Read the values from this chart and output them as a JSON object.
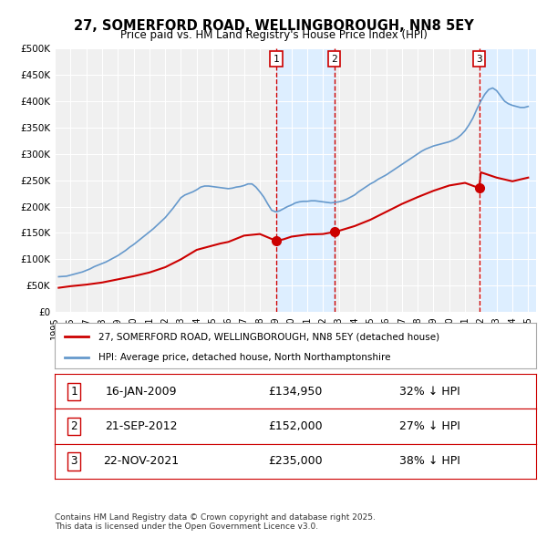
{
  "title_line1": "27, SOMERFORD ROAD, WELLINGBOROUGH, NN8 5EY",
  "title_line2": "Price paid vs. HM Land Registry's House Price Index (HPI)",
  "background_color": "#ffffff",
  "plot_bg_color": "#f0f0f0",
  "ylabel": "",
  "ylim": [
    0,
    500000
  ],
  "yticks": [
    0,
    50000,
    100000,
    150000,
    200000,
    250000,
    300000,
    350000,
    400000,
    450000,
    500000
  ],
  "ytick_labels": [
    "£0",
    "£50K",
    "£100K",
    "£150K",
    "£200K",
    "£250K",
    "£300K",
    "£350K",
    "£400K",
    "£450K",
    "£500K"
  ],
  "xlim_start": 1995.0,
  "xlim_end": 2025.5,
  "sale_dates": [
    2009.04,
    2012.72,
    2021.9
  ],
  "sale_prices": [
    134950,
    152000,
    235000
  ],
  "sale_labels": [
    "1",
    "2",
    "3"
  ],
  "sale_date_strs": [
    "16-JAN-2009",
    "21-SEP-2012",
    "22-NOV-2021"
  ],
  "sale_price_strs": [
    "£134,950",
    "£152,000",
    "£235,000"
  ],
  "sale_hpi_strs": [
    "32% ↓ HPI",
    "27% ↓ HPI",
    "38% ↓ HPI"
  ],
  "red_line_color": "#cc0000",
  "blue_line_color": "#6699cc",
  "shade_color": "#ddeeff",
  "grid_color": "#ffffff",
  "legend_label_red": "27, SOMERFORD ROAD, WELLINGBOROUGH, NN8 5EY (detached house)",
  "legend_label_blue": "HPI: Average price, detached house, North Northamptonshire",
  "footer_text": "Contains HM Land Registry data © Crown copyright and database right 2025.\nThis data is licensed under the Open Government Licence v3.0.",
  "hpi_data": {
    "years": [
      1995.25,
      1995.5,
      1995.75,
      1996.0,
      1996.25,
      1996.5,
      1996.75,
      1997.0,
      1997.25,
      1997.5,
      1997.75,
      1998.0,
      1998.25,
      1998.5,
      1998.75,
      1999.0,
      1999.25,
      1999.5,
      1999.75,
      2000.0,
      2000.25,
      2000.5,
      2000.75,
      2001.0,
      2001.25,
      2001.5,
      2001.75,
      2002.0,
      2002.25,
      2002.5,
      2002.75,
      2003.0,
      2003.25,
      2003.5,
      2003.75,
      2004.0,
      2004.25,
      2004.5,
      2004.75,
      2005.0,
      2005.25,
      2005.5,
      2005.75,
      2006.0,
      2006.25,
      2006.5,
      2006.75,
      2007.0,
      2007.25,
      2007.5,
      2007.75,
      2008.0,
      2008.25,
      2008.5,
      2008.75,
      2009.0,
      2009.25,
      2009.5,
      2009.75,
      2010.0,
      2010.25,
      2010.5,
      2010.75,
      2011.0,
      2011.25,
      2011.5,
      2011.75,
      2012.0,
      2012.25,
      2012.5,
      2012.75,
      2013.0,
      2013.25,
      2013.5,
      2013.75,
      2014.0,
      2014.25,
      2014.5,
      2014.75,
      2015.0,
      2015.25,
      2015.5,
      2015.75,
      2016.0,
      2016.25,
      2016.5,
      2016.75,
      2017.0,
      2017.25,
      2017.5,
      2017.75,
      2018.0,
      2018.25,
      2018.5,
      2018.75,
      2019.0,
      2019.25,
      2019.5,
      2019.75,
      2020.0,
      2020.25,
      2020.5,
      2020.75,
      2021.0,
      2021.25,
      2021.5,
      2021.75,
      2022.0,
      2022.25,
      2022.5,
      2022.75,
      2023.0,
      2023.25,
      2023.5,
      2023.75,
      2024.0,
      2024.25,
      2024.5,
      2024.75,
      2025.0
    ],
    "values": [
      67000,
      67500,
      68000,
      70000,
      72000,
      74000,
      76000,
      79000,
      82000,
      86000,
      89000,
      92000,
      95000,
      99000,
      103000,
      107000,
      112000,
      117000,
      123000,
      128000,
      134000,
      140000,
      146000,
      152000,
      158000,
      165000,
      172000,
      179000,
      188000,
      197000,
      207000,
      217000,
      222000,
      225000,
      228000,
      232000,
      237000,
      239000,
      239000,
      238000,
      237000,
      236000,
      235000,
      234000,
      235000,
      237000,
      238000,
      240000,
      243000,
      243000,
      237000,
      228000,
      218000,
      205000,
      193000,
      190000,
      192000,
      196000,
      200000,
      203000,
      207000,
      209000,
      210000,
      210000,
      211000,
      211000,
      210000,
      209000,
      208000,
      207000,
      208000,
      209000,
      211000,
      214000,
      218000,
      222000,
      228000,
      233000,
      238000,
      243000,
      247000,
      252000,
      256000,
      260000,
      265000,
      270000,
      275000,
      280000,
      285000,
      290000,
      295000,
      300000,
      305000,
      309000,
      312000,
      315000,
      317000,
      319000,
      321000,
      323000,
      326000,
      330000,
      336000,
      344000,
      355000,
      368000,
      385000,
      400000,
      413000,
      422000,
      425000,
      420000,
      410000,
      400000,
      395000,
      392000,
      390000,
      388000,
      388000,
      390000
    ]
  },
  "property_data": {
    "years": [
      1995.25,
      1996.0,
      1997.0,
      1998.0,
      1999.0,
      2000.0,
      2001.0,
      2002.0,
      2003.0,
      2004.0,
      2005.5,
      2006.0,
      2007.0,
      2008.0,
      2009.04,
      2009.5,
      2010.0,
      2011.0,
      2012.0,
      2012.72,
      2013.0,
      2014.0,
      2015.0,
      2016.0,
      2017.0,
      2018.0,
      2019.0,
      2020.0,
      2021.0,
      2021.9,
      2022.0,
      2023.0,
      2024.0,
      2025.0
    ],
    "values": [
      46000,
      49000,
      52000,
      56000,
      62000,
      68000,
      75000,
      85000,
      100000,
      118000,
      130000,
      133000,
      145000,
      148000,
      134950,
      138000,
      143000,
      147000,
      148000,
      152000,
      154000,
      163000,
      175000,
      190000,
      205000,
      218000,
      230000,
      240000,
      245000,
      235000,
      265000,
      255000,
      248000,
      255000
    ]
  }
}
